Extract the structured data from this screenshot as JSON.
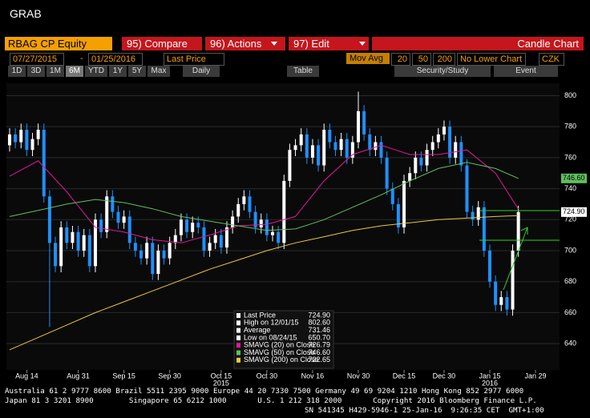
{
  "header": {
    "title": "GRAB"
  },
  "toolbar": {
    "security": "RBAG CP Equity",
    "tabs": [
      "95) Compare",
      "96) Actions",
      "97) Edit"
    ],
    "chart_type": "Candle Chart",
    "start_date": "07/27/2015",
    "date_sep": "-",
    "end_date": "01/25/2016",
    "field": "Last Price",
    "mov_avg_label": "Mov Avg",
    "mov_avg_periods": [
      20,
      50,
      200
    ],
    "lower_chart": "No Lower Chart",
    "currency": "CZK",
    "periods": [
      "1D",
      "3D",
      "1M",
      "6M",
      "YTD",
      "1Y",
      "5Y",
      "Max"
    ],
    "frequency": "Daily",
    "table": "Table",
    "security_study": "Security/Study",
    "event": "Event"
  },
  "chart_data": {
    "type": "candlestick",
    "up_color": "#ffffff",
    "down_color": "#1e90ff",
    "x": [
      0,
      1,
      2,
      3,
      4,
      5,
      6,
      7,
      8,
      9,
      10,
      11,
      12,
      13,
      14,
      15,
      16,
      17,
      18,
      19,
      20,
      21,
      22,
      23,
      24,
      25,
      26,
      27,
      28,
      29,
      30,
      31,
      32,
      33,
      34,
      35,
      36,
      37,
      38,
      39,
      40,
      41,
      42,
      43,
      44,
      45,
      46,
      47,
      48,
      49,
      50,
      51,
      52,
      53,
      54,
      55,
      56,
      57,
      58,
      59,
      60,
      61,
      62,
      63,
      64,
      65,
      66,
      67,
      68,
      69,
      70,
      71,
      72,
      73,
      74,
      75,
      76,
      77,
      78,
      79,
      80,
      81,
      82,
      83,
      84,
      85,
      86,
      87,
      88,
      89
    ],
    "open": [
      768,
      775,
      770,
      778,
      765,
      772,
      778,
      735,
      705,
      690,
      715,
      705,
      712,
      700,
      710,
      690,
      720,
      712,
      735,
      725,
      718,
      722,
      705,
      700,
      695,
      705,
      685,
      700,
      695,
      705,
      710,
      720,
      712,
      718,
      715,
      700,
      705,
      710,
      702,
      715,
      722,
      730,
      735,
      725,
      715,
      720,
      710,
      712,
      705,
      745,
      765,
      768,
      775,
      760,
      768,
      755,
      778,
      770,
      765,
      772,
      760,
      770,
      790,
      775,
      765,
      770,
      760,
      740,
      730,
      715,
      745,
      750,
      760,
      755,
      765,
      770,
      775,
      780,
      760,
      770,
      755,
      725,
      720,
      728,
      700,
      680,
      665,
      670,
      662,
      700
    ],
    "high": [
      779,
      779,
      782,
      782,
      776,
      782,
      782,
      739,
      709,
      719,
      719,
      716,
      716,
      714,
      714,
      724,
      724,
      739,
      739,
      729,
      726,
      726,
      709,
      704,
      709,
      709,
      704,
      704,
      709,
      714,
      724,
      724,
      722,
      722,
      719,
      709,
      714,
      714,
      719,
      726,
      734,
      739,
      739,
      729,
      724,
      724,
      716,
      716,
      749,
      769,
      772,
      779,
      779,
      772,
      772,
      782,
      782,
      774,
      776,
      776,
      774,
      802.6,
      794,
      779,
      774,
      774,
      764,
      744,
      734,
      749,
      754,
      764,
      764,
      769,
      774,
      779,
      784,
      784,
      774,
      774,
      759,
      729,
      732,
      732,
      704,
      684,
      674,
      674,
      704,
      729
    ],
    "low": [
      764,
      766,
      766,
      761,
      761,
      768,
      731,
      650.7,
      686,
      686,
      701,
      701,
      696,
      696,
      686,
      686,
      708,
      708,
      721,
      714,
      714,
      701,
      696,
      691,
      691,
      681,
      681,
      691,
      691,
      701,
      706,
      708,
      708,
      711,
      696,
      696,
      701,
      698,
      698,
      711,
      718,
      726,
      721,
      711,
      711,
      706,
      706,
      701,
      701,
      741,
      761,
      764,
      756,
      756,
      751,
      751,
      766,
      761,
      761,
      756,
      756,
      766,
      771,
      761,
      761,
      756,
      736,
      726,
      711,
      711,
      741,
      746,
      751,
      751,
      761,
      766,
      771,
      756,
      756,
      751,
      721,
      716,
      716,
      696,
      676,
      661,
      661,
      658,
      658,
      696
    ],
    "close": [
      775,
      770,
      778,
      765,
      772,
      778,
      735,
      705,
      690,
      715,
      705,
      712,
      700,
      710,
      690,
      720,
      712,
      735,
      725,
      718,
      722,
      705,
      700,
      695,
      705,
      685,
      700,
      695,
      705,
      710,
      720,
      712,
      718,
      715,
      700,
      705,
      710,
      702,
      715,
      722,
      730,
      735,
      725,
      715,
      720,
      710,
      712,
      705,
      745,
      765,
      768,
      775,
      760,
      768,
      755,
      778,
      770,
      765,
      772,
      760,
      770,
      790,
      775,
      765,
      770,
      760,
      740,
      730,
      715,
      745,
      750,
      760,
      755,
      765,
      770,
      775,
      780,
      760,
      770,
      755,
      725,
      720,
      728,
      700,
      680,
      665,
      670,
      662,
      700,
      724.9
    ],
    "series": [
      {
        "name": "SMAVG (20) on Close",
        "color": "#e0189a",
        "x": [
          0,
          5,
          10,
          15,
          20,
          25,
          30,
          35,
          40,
          45,
          50,
          55,
          60,
          65,
          70,
          75,
          80,
          85,
          89
        ],
        "values": [
          748,
          758,
          738,
          715,
          712,
          707,
          705,
          710,
          716,
          717,
          722,
          745,
          762,
          768,
          762,
          762,
          765,
          750,
          726.79
        ]
      },
      {
        "name": "SMAVG (50) on Close",
        "color": "#5fbf5f",
        "x": [
          0,
          5,
          10,
          15,
          20,
          25,
          30,
          35,
          40,
          45,
          50,
          55,
          60,
          65,
          70,
          75,
          80,
          85,
          89
        ],
        "values": [
          722,
          726,
          730,
          733,
          731,
          727,
          722,
          719,
          716,
          713,
          714,
          720,
          728,
          736,
          745,
          753,
          757,
          753,
          746.6
        ]
      },
      {
        "name": "SMAVG (200) on Close",
        "color": "#e8c840",
        "x": [
          0,
          5,
          10,
          15,
          20,
          25,
          30,
          35,
          40,
          45,
          50,
          55,
          60,
          65,
          70,
          75,
          80,
          85,
          89
        ],
        "values": [
          636,
          644,
          652,
          660,
          667,
          674,
          681,
          688,
          694,
          700,
          705,
          709,
          713,
          716,
          718,
          720,
          721,
          722,
          722.65
        ]
      }
    ],
    "xlim": [
      -0.56,
      96.2
    ],
    "xticks": [
      {
        "value": 3,
        "label": "Aug 14"
      },
      {
        "value": 12,
        "label": "Aug 31"
      },
      {
        "value": 20,
        "label": "Sep 15"
      },
      {
        "value": 28,
        "label": "Sep 30"
      },
      {
        "value": 37,
        "label": "Oct 15"
      },
      {
        "value": 45,
        "label": "Oct 30"
      },
      {
        "value": 53,
        "label": "Nov 16"
      },
      {
        "value": 61,
        "label": "Nov 30"
      },
      {
        "value": 69,
        "label": "Dec 15"
      },
      {
        "value": 76,
        "label": "Dec 30"
      },
      {
        "value": 84,
        "label": "Jan 15"
      },
      {
        "value": 92,
        "label": "Jan 29"
      }
    ],
    "year_labels": [
      {
        "value": 37,
        "label": "2015"
      },
      {
        "value": 84,
        "label": "2016"
      }
    ],
    "ylim": [
      623,
      808
    ],
    "yticks": [
      640,
      660,
      680,
      700,
      720,
      740,
      760,
      780,
      800
    ],
    "price_badges": [
      {
        "value": 746.6,
        "label": "746.60",
        "color": "#5fbf5f"
      },
      {
        "value": 724.9,
        "label": "724.90",
        "color": "#ffffff"
      }
    ],
    "stats": {
      "labels": [
        "Last Price",
        "High on 12/01/15",
        "Average",
        "Low on 08/24/15"
      ],
      "value_labels": [
        "724.90",
        "802.60",
        "731.46",
        "650.70"
      ]
    },
    "series_last_labels": [
      "726.79",
      "746.60",
      "722.65"
    ]
  },
  "footer": {
    "lines": [
      "Australia 61 2 9777 8600 Brazil 5511 2395 9000 Europe 44 20 7330 7500 Germany 49 69 9204 1210 Hong Kong 852 2977 6000",
      "Japan 81 3 3201 8900        Singapore 65 6212 1000       U.S. 1 212 318 2000       Copyright 2016 Bloomberg Finance L.P.",
      "SN 541345 H429-5946-1 25-Jan-16  9:26:35 CET  GMT+1:00"
    ]
  }
}
